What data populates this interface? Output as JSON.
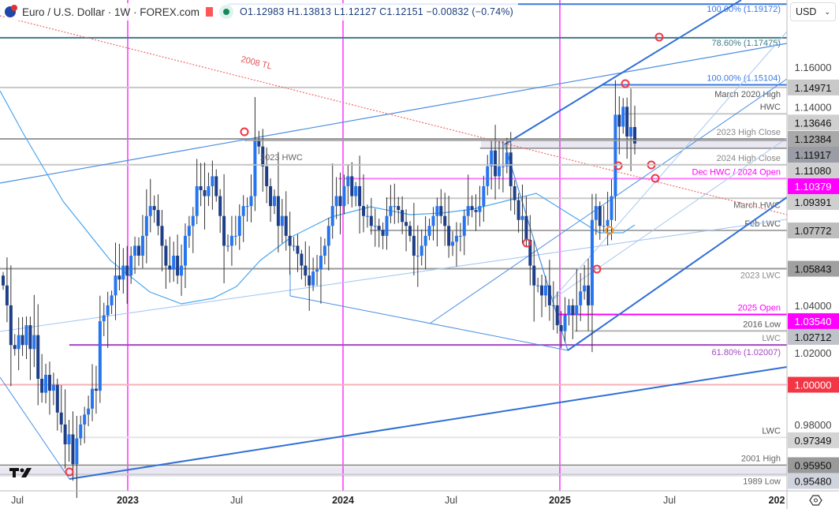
{
  "header": {
    "symbol": "Euro / U.S. Dollar · 1W · FOREX.com",
    "ohlc": "O1.12983 H1.13813 L1.12127 C1.12151 −0.00832 (−0.74%)"
  },
  "currency_select": {
    "value": "USD"
  },
  "colors": {
    "up": "#2575f0",
    "down": "#1e3f88",
    "magenta": "#ff00ff",
    "fib_blue": "#3b7ae0",
    "fib_teal": "#3f7b86",
    "purple": "#a447c4",
    "red": "#f23645"
  },
  "chart_data": {
    "type": "candlestick",
    "title": "Euro / U.S. Dollar · 1W · FOREX.com",
    "ylim": [
      0.945,
      1.195
    ],
    "x_tick_labels": [
      "Jul",
      "2023",
      "Jul",
      "2024",
      "Jul",
      "2025",
      "Jul",
      "202"
    ],
    "y_tick_labels": [
      "1.16000",
      "1.14000",
      "1.04000",
      "1.02000",
      "0.98000"
    ],
    "y_ticks": [
      1.16,
      1.14,
      1.04,
      1.02,
      0.98
    ],
    "weekly_closes": [
      1.05,
      1.04,
      1.02,
      1.018,
      1.025,
      1.02,
      1.03,
      1.018,
      1.025,
      1.003,
      0.996,
      1.005,
      0.997,
      1.0,
      0.986,
      0.98,
      0.97,
      0.975,
      0.96,
      0.973,
      0.98,
      0.985,
      0.988,
      0.998,
      0.997,
      1.032,
      1.035,
      1.04,
      1.045,
      1.055,
      1.053,
      1.06,
      1.055,
      1.065,
      1.07,
      1.065,
      1.075,
      1.085,
      1.09,
      1.088,
      1.08,
      1.07,
      1.06,
      1.058,
      1.065,
      1.055,
      1.06,
      1.075,
      1.08,
      1.085,
      1.1,
      1.098,
      1.095,
      1.1,
      1.105,
      1.095,
      1.085,
      1.07,
      1.07,
      1.075,
      1.075,
      1.085,
      1.09,
      1.09,
      1.095,
      1.123,
      1.12,
      1.11,
      1.1,
      1.09,
      1.095,
      1.08,
      1.085,
      1.075,
      1.07,
      1.07,
      1.066,
      1.06,
      1.055,
      1.05,
      1.057,
      1.058,
      1.065,
      1.07,
      1.08,
      1.09,
      1.095,
      1.09,
      1.1,
      1.105,
      1.095,
      1.1,
      1.09,
      1.085,
      1.085,
      1.08,
      1.08,
      1.078,
      1.075,
      1.085,
      1.09,
      1.09,
      1.088,
      1.082,
      1.08,
      1.075,
      1.065,
      1.065,
      1.07,
      1.075,
      1.08,
      1.085,
      1.09,
      1.085,
      1.08,
      1.07,
      1.072,
      1.075,
      1.075,
      1.085,
      1.09,
      1.088,
      1.087,
      1.09,
      1.1,
      1.11,
      1.118,
      1.105,
      1.11,
      1.11,
      1.117,
      1.1,
      1.093,
      1.083,
      1.085,
      1.073,
      1.06,
      1.05,
      1.05,
      1.045,
      1.05,
      1.04,
      1.04,
      1.03,
      1.027,
      1.035,
      1.04,
      1.035,
      1.04,
      1.047,
      1.05,
      1.04,
      1.083,
      1.09,
      1.08,
      1.08,
      1.083,
      1.095,
      1.136,
      1.13,
      1.14,
      1.125,
      1.1298,
      1.12151
    ],
    "levels": [
      {
        "price": 1.19172,
        "label": "100.00% (1.19172)",
        "color": "#3b7ae0",
        "text_color": "#3b7ae0",
        "from": 0.29,
        "box": null
      },
      {
        "price": 1.17475,
        "label": "78.60% (1.17475)",
        "color": "#3f7b86",
        "text_color": "#3f7b86",
        "from": 0,
        "box": null
      },
      {
        "price": 1.15104,
        "label": "100.00% (1.15104)",
        "color": "#3b7ae0",
        "text_color": "#3b7ae0",
        "from": 0.765,
        "box": null
      },
      {
        "price": 1.14971,
        "label": "March 2020 High",
        "color": "#c8c8c8",
        "text_color": "#555",
        "from": 0,
        "box": "1.14971",
        "box_color": "#c9c9c9",
        "below": true
      },
      {
        "price": 1.13646,
        "label": "HWC",
        "color": "#c8c8c8",
        "text_color": "#555",
        "from": 0.79,
        "box": "1.13646",
        "box_color": "#cfcfcf",
        "above": true
      },
      {
        "price": 1.12384,
        "label": "2023 High Close",
        "color": "#9a9a9a",
        "text_color": "#888",
        "from": 0,
        "box": "1.12384",
        "box_color": "#a9a9a9",
        "above": true
      },
      {
        "price": 1.11917,
        "label": "",
        "color": "#999",
        "text_color": "#888",
        "from": 0.61,
        "box": "1.11917",
        "box_color": "#9a9ca6"
      },
      {
        "price": 1.1108,
        "label": "2024 High Close",
        "color": "#c8c8c8",
        "text_color": "#888",
        "from": 0,
        "box": "1.11080",
        "box_color": "#d0d0d0",
        "above": true
      },
      {
        "price": 1.10379,
        "label": "Dec HWC / 2024 Open",
        "color": "#ff7cff",
        "text_color": "#ff00ff",
        "from": 0.43,
        "box": "1.10379",
        "box_color": "#ff00ff",
        "box_text": "#fff",
        "above": true
      },
      {
        "price": 1.09391,
        "label": "March HWC",
        "color": "#c8c8c8",
        "text_color": "#666",
        "from": 0.49,
        "box": "1.09391",
        "box_color": "#cfcfcf",
        "below": true
      },
      {
        "price": 1.07772,
        "label": "Feb LWC",
        "color": "#aaa",
        "text_color": "#555",
        "from": 0.47,
        "box": "1.07772",
        "box_color": "#bdbdbd",
        "above": true
      },
      {
        "price": 1.05843,
        "label": "2023 LWC",
        "color": "#999",
        "text_color": "#888",
        "from": 0,
        "box": "1.05843",
        "box_color": "#a0a0a0",
        "below": true
      },
      {
        "price": 1.0354,
        "label": "2025 Open",
        "color": "#ff00ff",
        "text_color": "#ff00ff",
        "from": 0.71,
        "box": "1.03540",
        "box_color": "#ff00ff",
        "box_text": "#fff",
        "above": true
      },
      {
        "price": 1.02712,
        "label": "2016 Low",
        "color": "#b4b4b4",
        "text_color": "#555",
        "from": 0.73,
        "box": "1.02712",
        "box_color": "#bfc2c9",
        "above": true
      },
      {
        "price": 1.02007,
        "label": "61.80% (1.02007)",
        "color": "#a447c4",
        "text_color": "#a447c4",
        "from": 0.088,
        "box": null,
        "below": true,
        "sub_label": "LWC"
      },
      {
        "price": 1.0,
        "label": "",
        "color": "#f7b2b8",
        "text_color": "#888",
        "from": 0,
        "box": "1.00000",
        "box_color": "#f23645",
        "box_text": "#fff"
      },
      {
        "price": 0.97349,
        "label": "LWC",
        "color": "#e6e6e6",
        "text_color": "#555",
        "from": 0.1,
        "box": "0.97349",
        "box_color": "#d4d4d4",
        "above": true
      },
      {
        "price": 0.9595,
        "label": "2001 High",
        "color": "#999",
        "text_color": "#666",
        "from": 0,
        "box": "0.95950",
        "box_color": "#9a9a9a",
        "above": true
      },
      {
        "price": 0.9548,
        "label": "1989 Low",
        "color": "#ccc",
        "text_color": "#666",
        "from": 0,
        "box": "0.95480",
        "box_color": "#d0d4de",
        "below": true
      }
    ],
    "annotations": {
      "trendline_label": "2008 TL",
      "hwc_2023_label": "2023 HWC"
    }
  }
}
